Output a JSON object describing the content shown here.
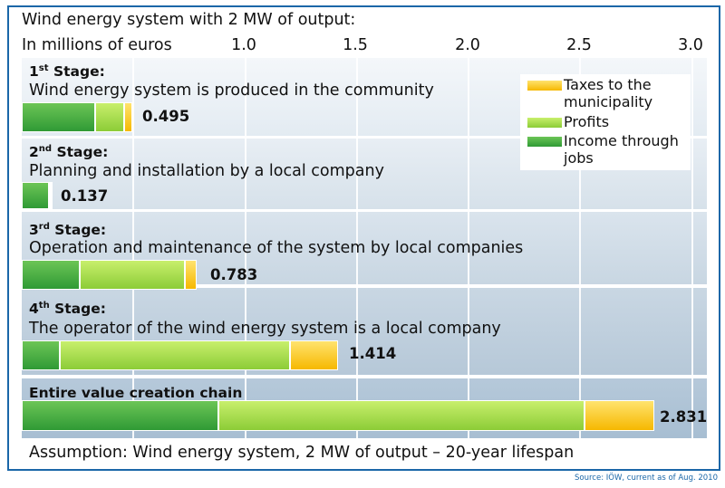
{
  "title": "Wind energy system with 2 MW of output:",
  "unit_label": "In millions of euros",
  "axis_ticks": [
    "1.0",
    "1.5",
    "2.0",
    "2.5",
    "3.0"
  ],
  "legend": [
    {
      "label": "Taxes to the municipality",
      "line1": "Taxes to the",
      "line2": "municipality",
      "color": "#f6b800"
    },
    {
      "label": "Profits",
      "line1": "Profits",
      "line2": "",
      "color": "#9ad43f"
    },
    {
      "label": "Income through jobs",
      "line1": "Income through",
      "line2": "jobs",
      "color": "#3aa33c"
    }
  ],
  "stages": [
    {
      "ordinal": "1",
      "suffix": "st",
      "word": "Stage:",
      "desc": "Wind energy system is produced in the community",
      "value_label": "0.495"
    },
    {
      "ordinal": "2",
      "suffix": "nd",
      "word": "Stage:",
      "desc": "Planning and installation by a local company",
      "value_label": "0.137"
    },
    {
      "ordinal": "3",
      "suffix": "rd",
      "word": "Stage:",
      "desc": "Operation and maintenance of the system by local companies",
      "value_label": "0.783"
    },
    {
      "ordinal": "4",
      "suffix": "th",
      "word": "Stage:",
      "desc": "The operator of the wind energy system is a local company",
      "value_label": "1.414"
    }
  ],
  "total": {
    "title": "Entire value creation chain",
    "value_label": "2.831"
  },
  "footer": "Assumption: Wind energy system, 2 MW of output – 20-year lifespan",
  "source": "Source: IÖW, current as of Aug. 2010",
  "chart_data": {
    "type": "bar",
    "orientation": "horizontal",
    "stacked": true,
    "title": "Wind energy system with 2 MW of output:",
    "xlabel": "In millions of euros",
    "xlim": [
      0,
      3.0
    ],
    "categories": [
      "1st Stage",
      "2nd Stage",
      "3rd Stage",
      "4th Stage",
      "Entire value creation chain"
    ],
    "series": [
      {
        "name": "Income through jobs",
        "values": [
          0.33,
          0.12,
          0.26,
          0.17,
          0.88
        ],
        "color": "#3aa33c"
      },
      {
        "name": "Profits",
        "values": [
          0.13,
          0.01,
          0.47,
          1.03,
          1.64
        ],
        "color": "#9ad43f"
      },
      {
        "name": "Taxes to the municipality",
        "values": [
          0.035,
          0.007,
          0.053,
          0.214,
          0.311
        ],
        "color": "#f6b800"
      }
    ],
    "totals": [
      0.495,
      0.137,
      0.783,
      1.414,
      2.831
    ],
    "grid": true,
    "legend_position": "top-right"
  }
}
